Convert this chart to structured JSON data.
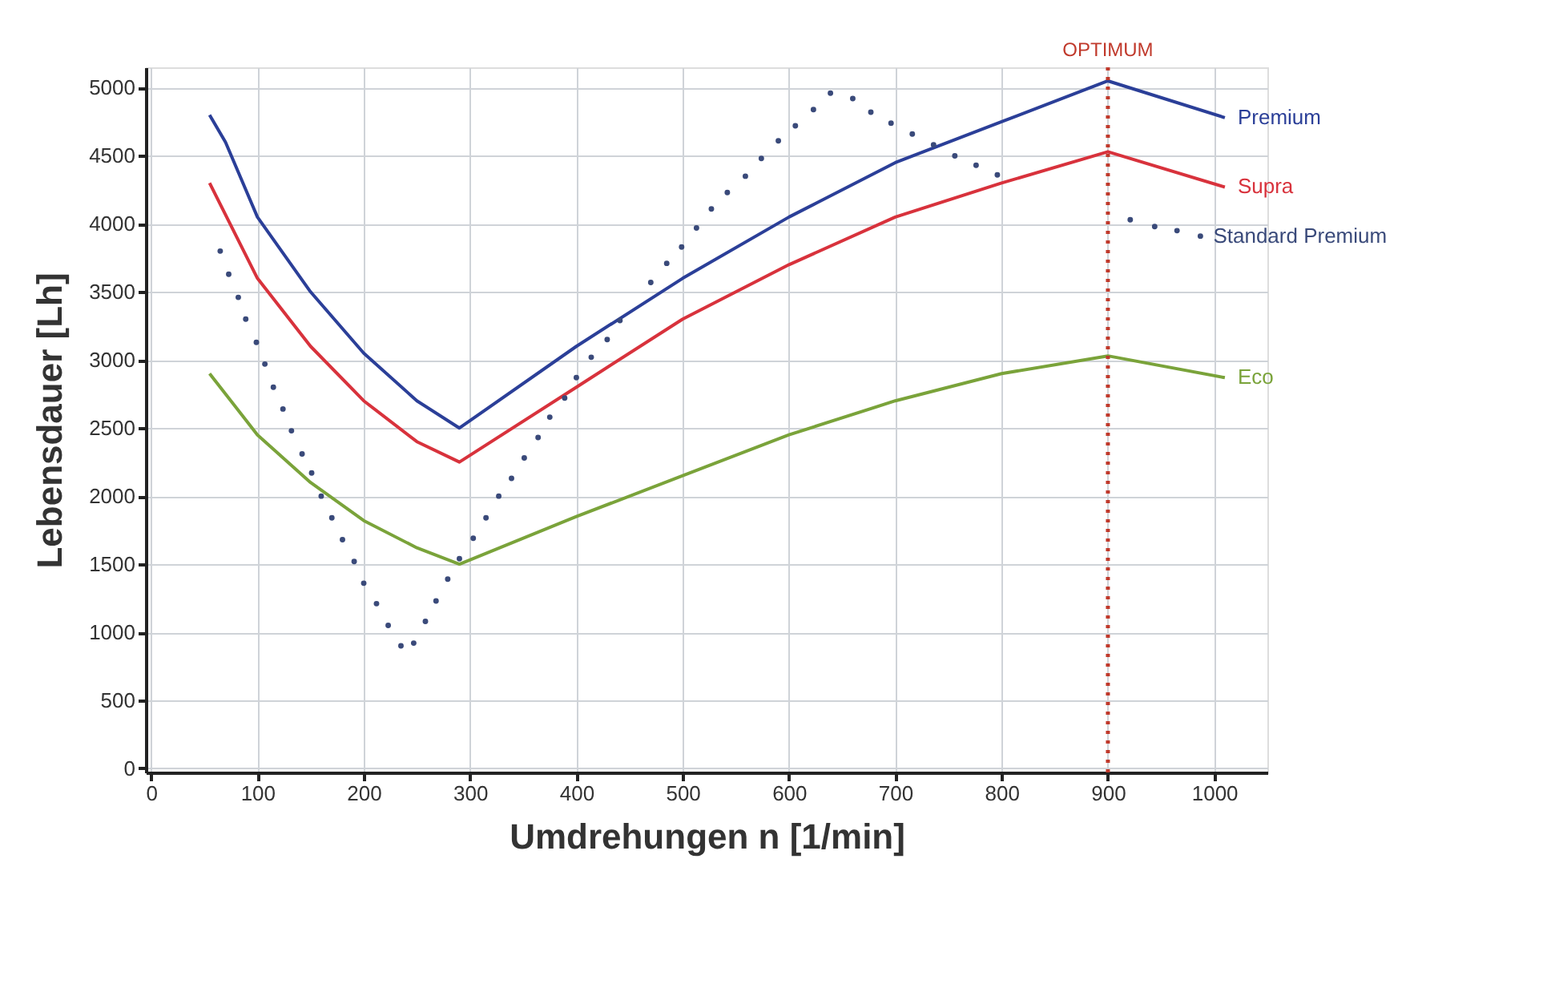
{
  "chart_data": {
    "type": "line",
    "xlabel": "Umdrehungen n [1/min]",
    "ylabel": "Lebensdauer [Lh]",
    "xlim": [
      -5,
      1050
    ],
    "ylim": [
      -30,
      5150
    ],
    "xticks": [
      0,
      100,
      200,
      300,
      400,
      500,
      600,
      700,
      800,
      900,
      1000
    ],
    "yticks": [
      0,
      500,
      1000,
      1500,
      2000,
      2500,
      3000,
      3500,
      4000,
      4500,
      5000
    ],
    "grid": true,
    "series": [
      {
        "name": "Premium",
        "color": "#2b3f98",
        "x": [
          55,
          70,
          100,
          150,
          200,
          250,
          290,
          400,
          500,
          600,
          700,
          800,
          900,
          1010
        ],
        "values": [
          4800,
          4600,
          4050,
          3500,
          3050,
          2700,
          2500,
          3100,
          3600,
          4050,
          4450,
          4750,
          5050,
          4780
        ]
      },
      {
        "name": "Supra",
        "color": "#d8323c",
        "x": [
          55,
          100,
          150,
          200,
          250,
          290,
          400,
          500,
          600,
          700,
          800,
          900,
          1010
        ],
        "values": [
          4300,
          3600,
          3100,
          2700,
          2400,
          2250,
          2800,
          3300,
          3700,
          4050,
          4300,
          4530,
          4270
        ]
      },
      {
        "name": "Eco",
        "color": "#7aa33a",
        "x": [
          55,
          100,
          150,
          200,
          250,
          290,
          400,
          500,
          600,
          700,
          800,
          900,
          1010
        ],
        "values": [
          2900,
          2450,
          2100,
          1820,
          1620,
          1500,
          1850,
          2150,
          2450,
          2700,
          2900,
          3030,
          2870
        ]
      },
      {
        "name": "Standard Premium",
        "type": "scatter",
        "marker": "circle",
        "color": "#3a4a7a",
        "x": [
          65,
          73,
          82,
          89,
          99,
          107,
          115,
          124,
          132,
          142,
          151,
          160,
          170,
          180,
          191,
          200,
          212,
          223,
          235,
          247,
          258,
          268,
          279,
          290,
          303,
          315,
          327,
          339,
          351,
          364,
          375,
          389,
          400,
          414,
          429,
          441,
          470,
          485,
          499,
          513,
          527,
          542,
          559,
          574,
          590,
          606,
          623,
          639,
          660,
          677,
          696,
          716,
          736,
          756,
          776,
          796,
          921,
          944,
          965,
          987
        ],
        "values": [
          3800,
          3630,
          3460,
          3300,
          3130,
          2970,
          2800,
          2640,
          2480,
          2310,
          2170,
          2000,
          1840,
          1680,
          1520,
          1360,
          1210,
          1050,
          900,
          920,
          1080,
          1230,
          1390,
          1540,
          1690,
          1840,
          2000,
          2130,
          2280,
          2430,
          2580,
          2720,
          2870,
          3020,
          3150,
          3290,
          3570,
          3710,
          3830,
          3970,
          4110,
          4230,
          4350,
          4480,
          4610,
          4720,
          4840,
          4960,
          4920,
          4820,
          4740,
          4660,
          4580,
          4500,
          4430,
          4360,
          4030,
          3980,
          3950,
          3910
        ]
      }
    ],
    "ref_lines": [
      {
        "axis": "x",
        "value": 900,
        "label": "OPTIMUM",
        "color": "#c0392b",
        "line_style": "dotted"
      }
    ]
  }
}
